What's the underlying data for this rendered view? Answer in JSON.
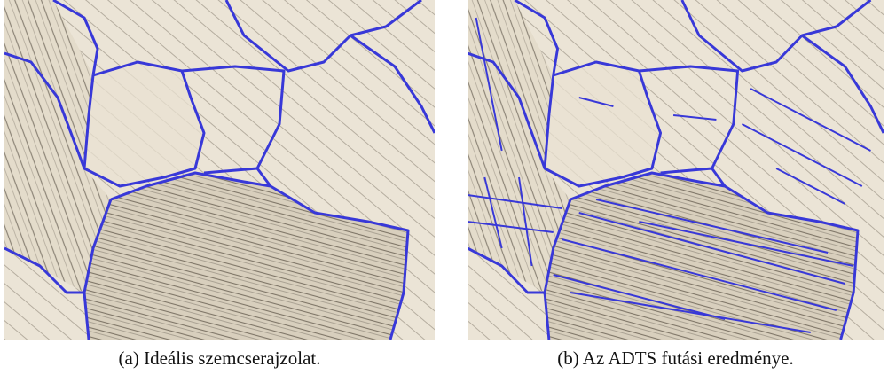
{
  "figures": [
    {
      "caption": "(a) Ideális szemcserajzolat."
    },
    {
      "caption": "(b) Az ADTS futási eredménye."
    }
  ]
}
